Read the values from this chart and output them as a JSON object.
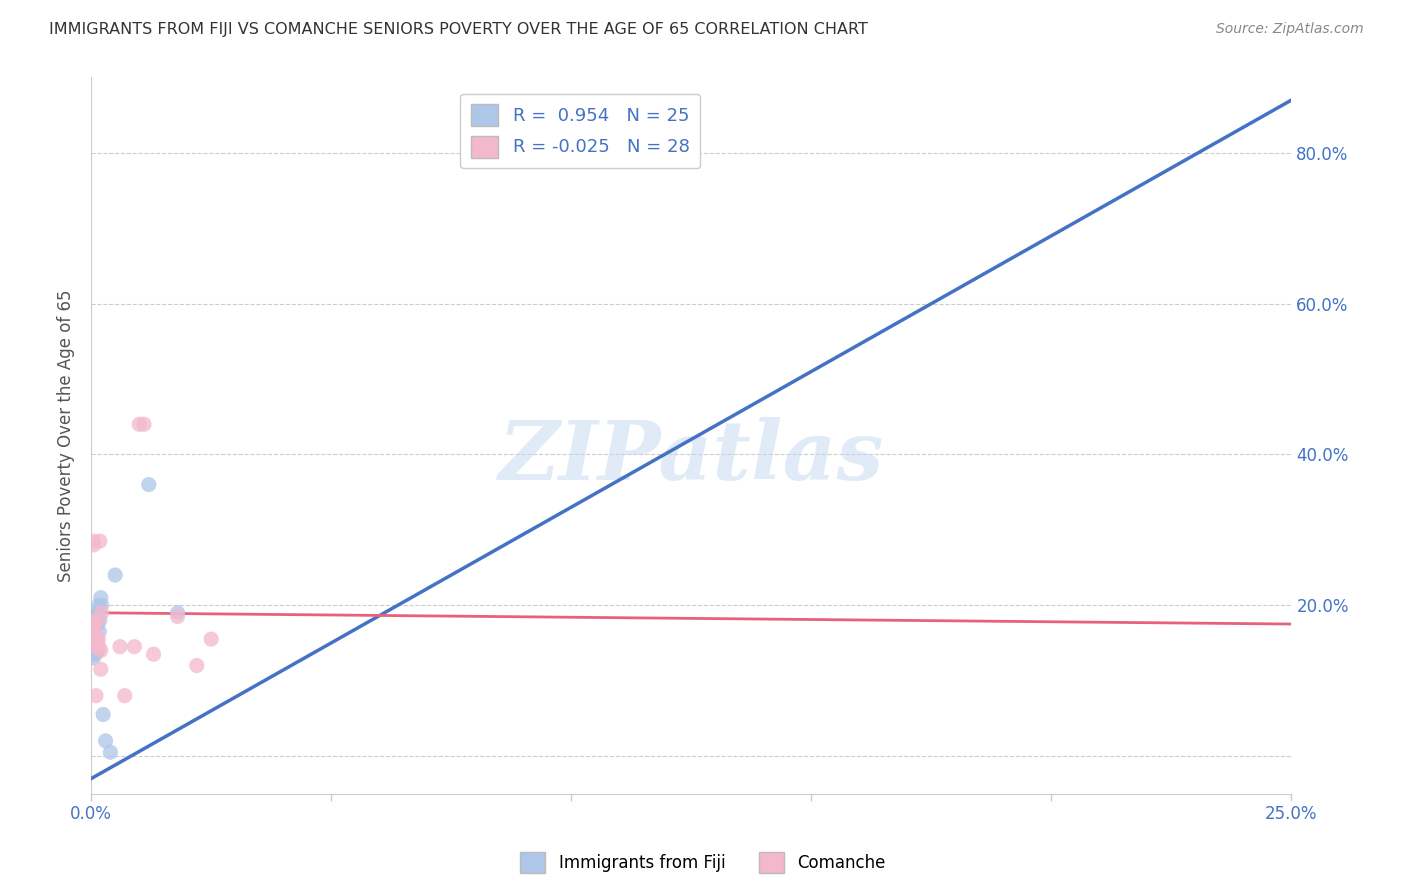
{
  "title": "IMMIGRANTS FROM FIJI VS COMANCHE SENIORS POVERTY OVER THE AGE OF 65 CORRELATION CHART",
  "source": "Source: ZipAtlas.com",
  "ylabel": "Seniors Poverty Over the Age of 65",
  "xlim": [
    0.0,
    0.25
  ],
  "ylim": [
    -0.05,
    0.9
  ],
  "fiji_R": 0.954,
  "fiji_N": 25,
  "comanche_R": -0.025,
  "comanche_N": 28,
  "fiji_color": "#aec6e8",
  "comanche_color": "#f4b8cc",
  "fiji_line_color": "#4472c4",
  "comanche_line_color": "#e8607a",
  "fiji_scatter_x": [
    0.0002,
    0.0003,
    0.0004,
    0.0005,
    0.0006,
    0.0007,
    0.0008,
    0.0009,
    0.001,
    0.001,
    0.0012,
    0.0013,
    0.0014,
    0.0015,
    0.0016,
    0.0017,
    0.0018,
    0.002,
    0.0022,
    0.0025,
    0.003,
    0.004,
    0.005,
    0.012,
    0.018
  ],
  "fiji_scatter_y": [
    0.135,
    0.14,
    0.13,
    0.145,
    0.15,
    0.16,
    0.145,
    0.135,
    0.155,
    0.18,
    0.19,
    0.175,
    0.14,
    0.19,
    0.2,
    0.165,
    0.18,
    0.21,
    0.2,
    0.055,
    0.02,
    0.005,
    0.24,
    0.36,
    0.19
  ],
  "comanche_scatter_x": [
    0.0002,
    0.0003,
    0.0004,
    0.0005,
    0.0005,
    0.0006,
    0.0007,
    0.0008,
    0.0009,
    0.001,
    0.001,
    0.0012,
    0.0014,
    0.0015,
    0.0016,
    0.0018,
    0.002,
    0.002,
    0.0022,
    0.006,
    0.007,
    0.009,
    0.01,
    0.011,
    0.013,
    0.018,
    0.022,
    0.025
  ],
  "comanche_scatter_y": [
    0.175,
    0.165,
    0.175,
    0.28,
    0.285,
    0.175,
    0.155,
    0.165,
    0.155,
    0.08,
    0.145,
    0.155,
    0.18,
    0.155,
    0.145,
    0.285,
    0.14,
    0.115,
    0.19,
    0.145,
    0.08,
    0.145,
    0.44,
    0.44,
    0.135,
    0.185,
    0.12,
    0.155
  ],
  "fiji_line_x": [
    0.0,
    0.25
  ],
  "fiji_line_y": [
    -0.03,
    0.87
  ],
  "comanche_line_x": [
    0.0,
    0.25
  ],
  "comanche_line_y": [
    0.19,
    0.175
  ],
  "watermark": "ZIPatlas",
  "legend_fiji": "Immigrants from Fiji",
  "legend_comanche": "Comanche",
  "background_color": "#ffffff",
  "grid_color": "#cccccc",
  "title_color": "#333333",
  "axis_label_color": "#4472c4",
  "scatter_size": 120
}
